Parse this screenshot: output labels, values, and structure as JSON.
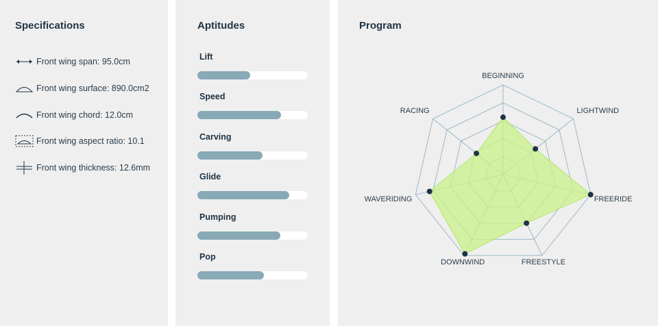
{
  "specifications": {
    "title": "Specifications",
    "items": [
      "Front wing span: 95.0cm",
      "Front wing surface: 890.0cm2",
      "Front wing chord: 12.0cm",
      "Front wing aspect ratio: 10.1",
      "Front wing thickness: 12.6mm"
    ]
  },
  "aptitudes": {
    "title": "Aptitudes",
    "xlim": [
      0,
      100
    ],
    "items": [
      {
        "label": "Lift",
        "value": 48
      },
      {
        "label": "Speed",
        "value": 76
      },
      {
        "label": "Carving",
        "value": 59
      },
      {
        "label": "Glide",
        "value": 83
      },
      {
        "label": "Pumping",
        "value": 75
      },
      {
        "label": "Pop",
        "value": 60
      }
    ]
  },
  "program": {
    "title": "Program",
    "chart_data": {
      "type": "radar",
      "rlim": [
        0,
        5
      ],
      "rticks": [
        1,
        2,
        3,
        4,
        5
      ],
      "color": "#c9f28a",
      "categories": [
        "BEGINNING",
        "LIGHTWIND",
        "FREERIDE",
        "FREESTYLE",
        "DOWNWIND",
        "WAVERIDING",
        "RACING"
      ],
      "values": [
        3.2,
        2.3,
        5,
        3,
        4.9,
        4.2,
        1.9
      ]
    }
  }
}
